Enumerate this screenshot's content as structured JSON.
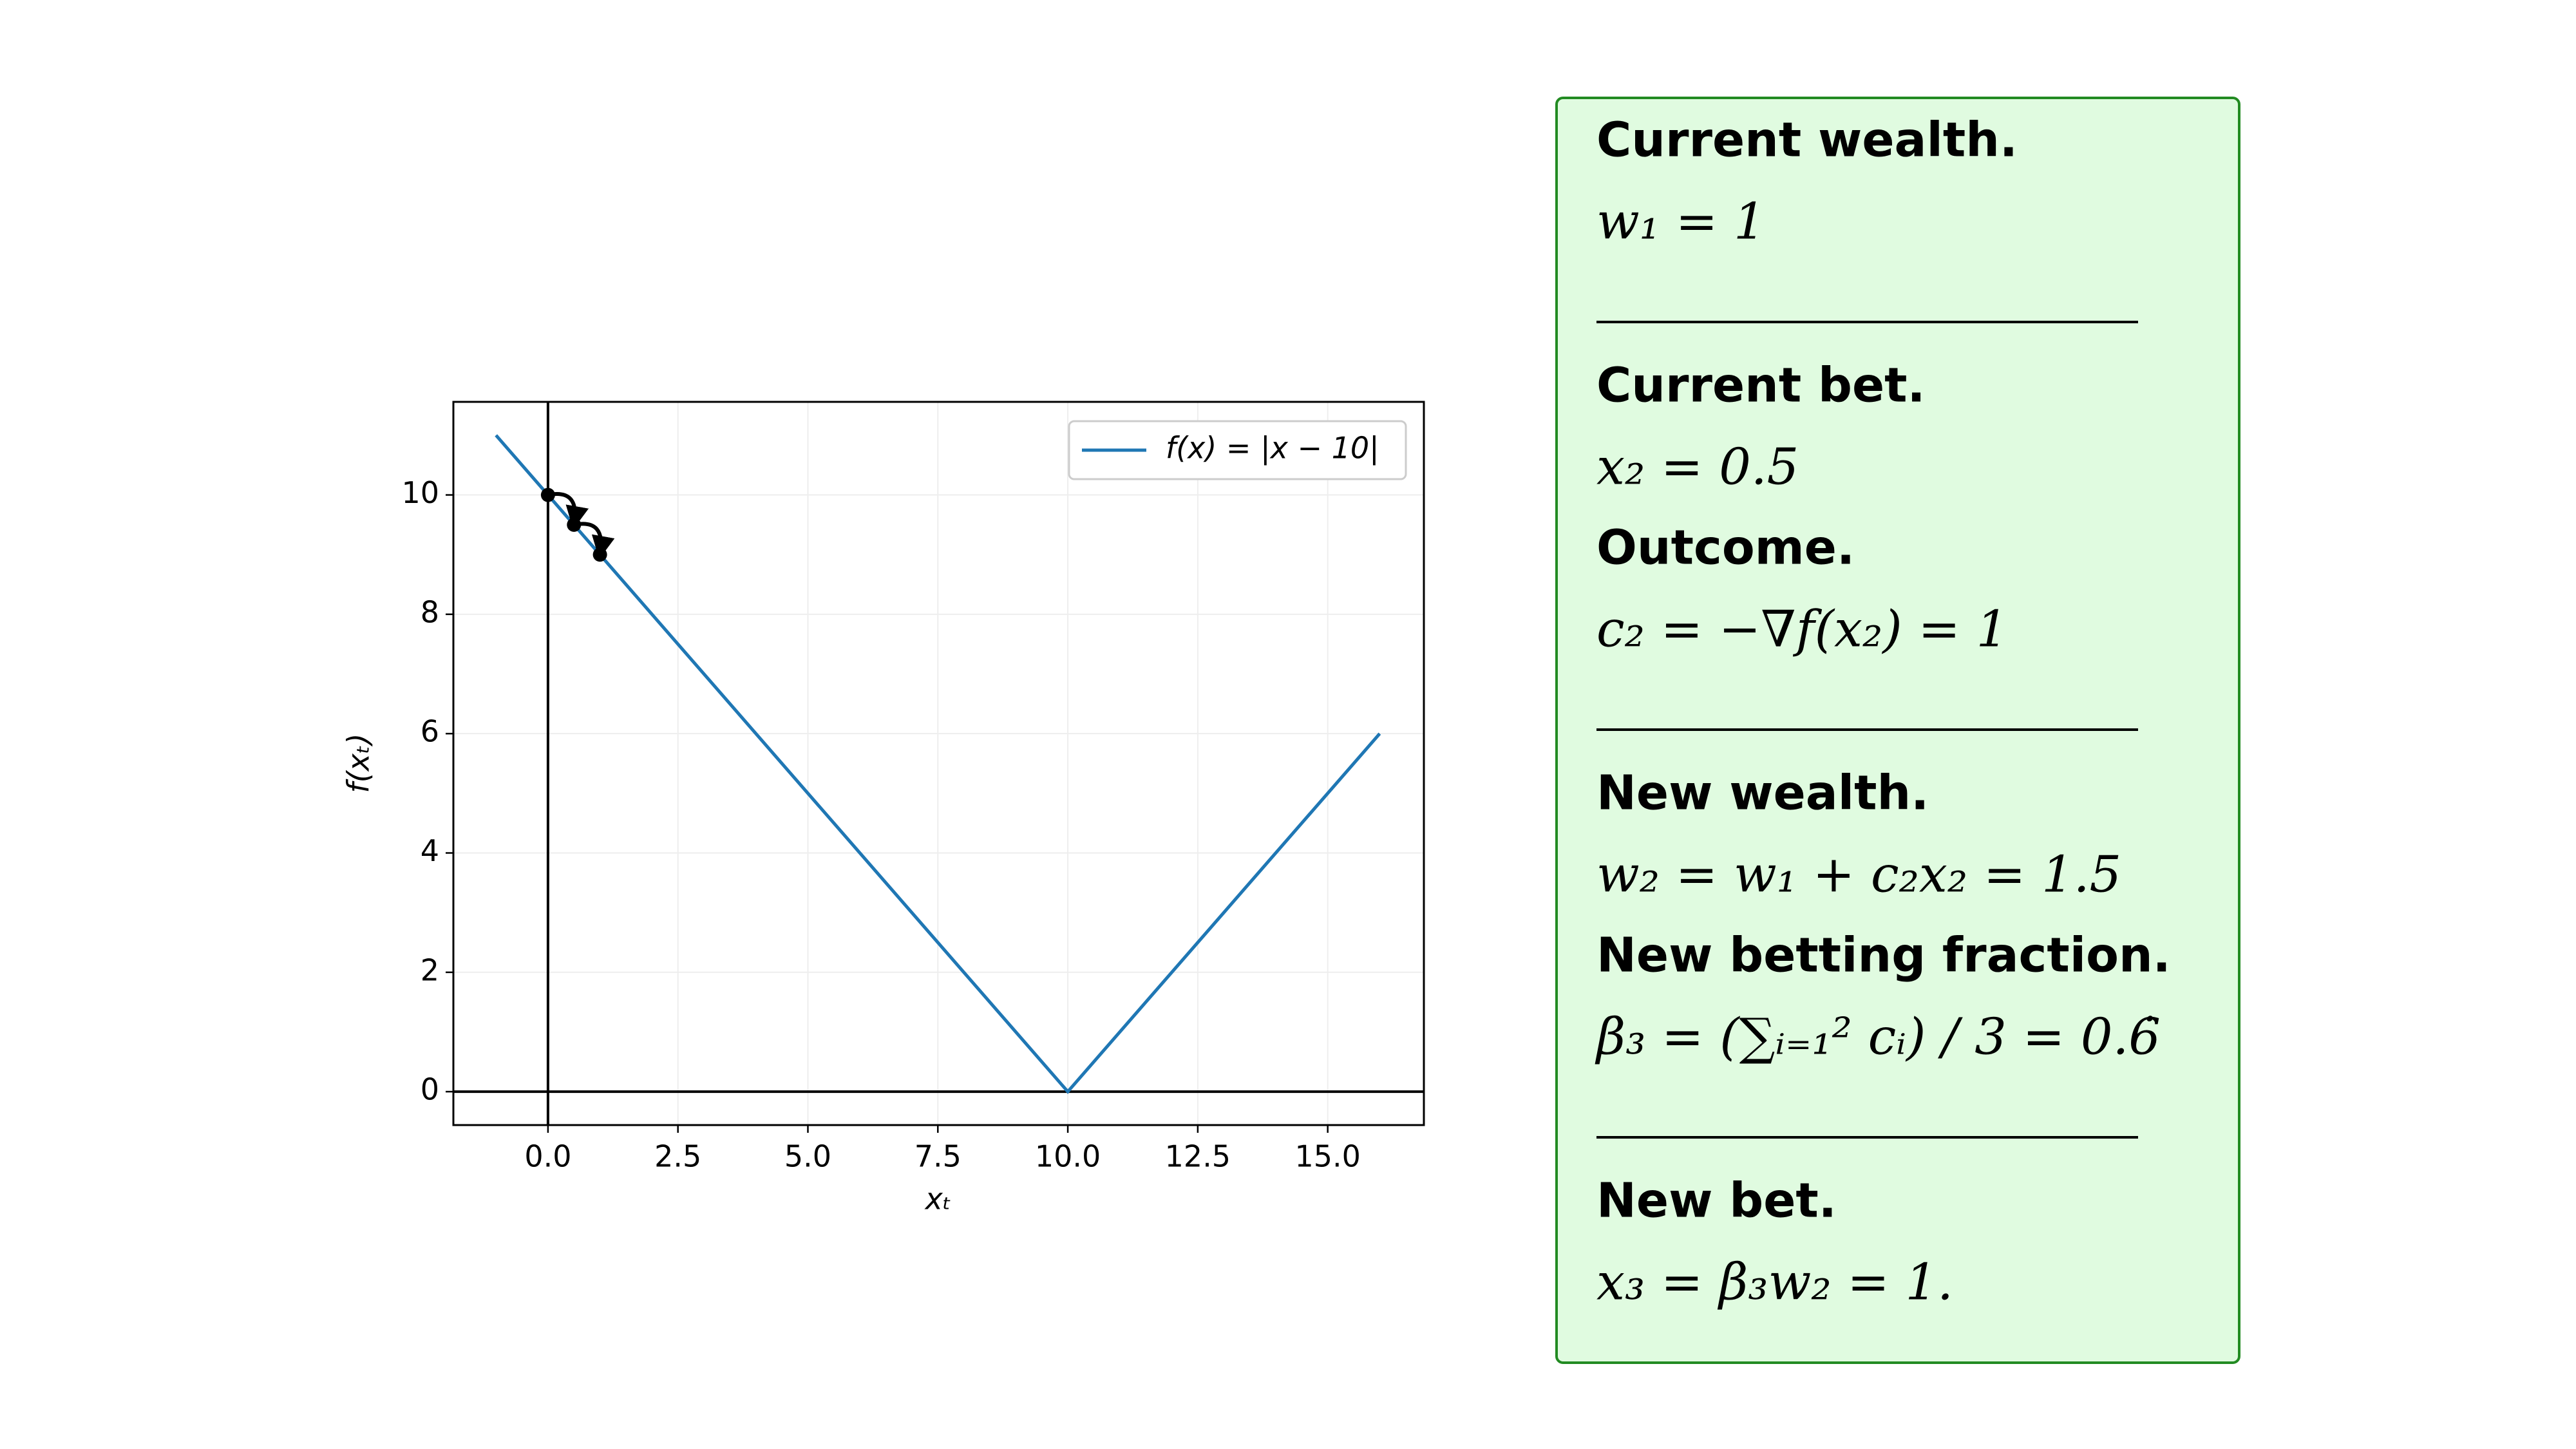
{
  "chart_data": {
    "type": "line",
    "xlabel": "xₜ",
    "ylabel": "f(xₜ)",
    "xlim": [
      -1.82,
      16.85
    ],
    "ylim": [
      -0.56,
      11.56
    ],
    "xticks": [
      {
        "value": 0,
        "label": "0.0"
      },
      2.5,
      {
        "value": 5,
        "label": "5.0"
      },
      7.5,
      {
        "value": 10,
        "label": "10.0"
      },
      12.5,
      {
        "value": 15,
        "label": "15.0"
      }
    ],
    "yticks": [
      0,
      2,
      4,
      6,
      8,
      10
    ],
    "grid": true,
    "zero_lines": true,
    "legend": "upper right",
    "series": [
      {
        "name": "f(x) = |x − 10|",
        "color": "#1f77b4",
        "x": [
          -1,
          10,
          16
        ],
        "values": [
          11,
          0,
          6
        ]
      },
      {
        "color": "#000000",
        "x": [
          0,
          0.5,
          1
        ],
        "values": [
          10,
          9.5,
          9
        ],
        "markers": true
      }
    ]
  },
  "panel": {
    "groups": [
      [
        {
          "heading": "Current wealth.",
          "formula": "w₁ = 1"
        }
      ],
      [
        {
          "heading": "Current bet.",
          "formula": "x₂ = 0.5"
        },
        {
          "heading": "Outcome.",
          "formula": "c₂ = −∇f(x₂) = 1"
        }
      ],
      [
        {
          "heading": "New wealth.",
          "formula": "w₂ = w₁ + c₂x₂ = 1.5"
        },
        {
          "heading": "New betting fraction.",
          "formula": "β₃ = (∑ᵢ₌₁² cᵢ) / 3 = 0.6̇"
        }
      ],
      [
        {
          "heading": "New bet.",
          "formula": "x₃ = β₃w₂ = 1."
        }
      ]
    ]
  }
}
